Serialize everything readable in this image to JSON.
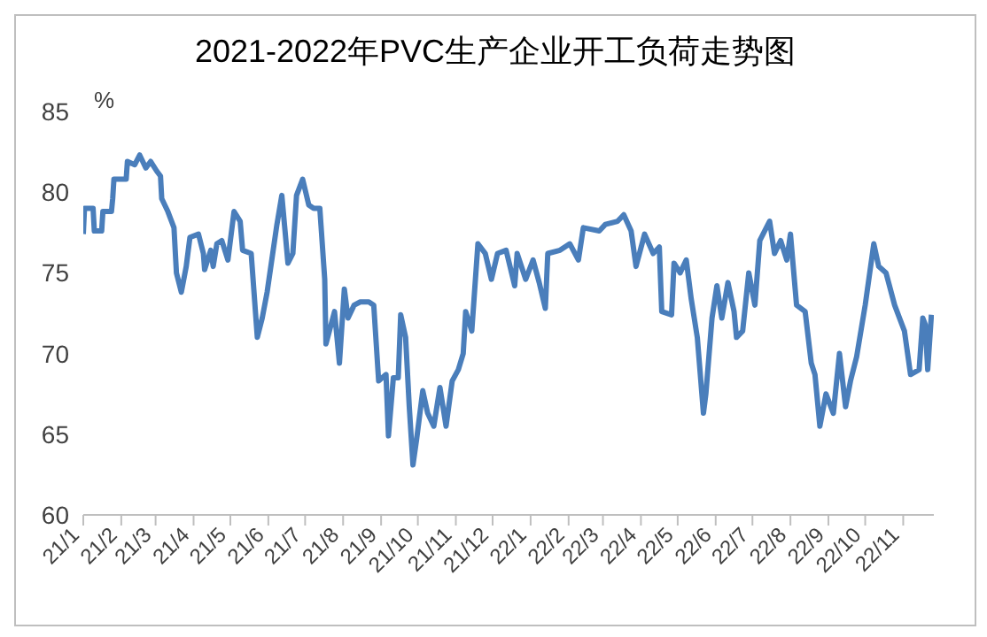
{
  "chart_data": {
    "type": "line",
    "title": "2021-2022年PVC生产企业开工负荷走势图",
    "ylabel": "%",
    "grid": false,
    "legend": false,
    "marker": "none",
    "line_style": "solid",
    "xlim": [
      "2021-01-01",
      "2022-11-26"
    ],
    "ylim": [
      60,
      85
    ],
    "yticks": [
      60,
      65,
      70,
      75,
      80,
      85
    ],
    "xticks": [
      {
        "value": "2021-01-01",
        "label": "21/1"
      },
      {
        "value": "2021-02-01",
        "label": "21/2"
      },
      {
        "value": "2021-03-01",
        "label": "21/3"
      },
      {
        "value": "2021-04-01",
        "label": "21/4"
      },
      {
        "value": "2021-05-01",
        "label": "21/5"
      },
      {
        "value": "2021-06-01",
        "label": "21/6"
      },
      {
        "value": "2021-07-01",
        "label": "21/7"
      },
      {
        "value": "2021-08-01",
        "label": "21/8"
      },
      {
        "value": "2021-09-01",
        "label": "21/9"
      },
      {
        "value": "2021-10-01",
        "label": "21/10"
      },
      {
        "value": "2021-11-01",
        "label": "21/11"
      },
      {
        "value": "2021-12-01",
        "label": "21/12"
      },
      {
        "value": "2022-01-01",
        "label": "22/1"
      },
      {
        "value": "2022-02-01",
        "label": "22/2"
      },
      {
        "value": "2022-03-01",
        "label": "22/3"
      },
      {
        "value": "2022-04-01",
        "label": "22/4"
      },
      {
        "value": "2022-05-01",
        "label": "22/5"
      },
      {
        "value": "2022-06-01",
        "label": "22/6"
      },
      {
        "value": "2022-07-01",
        "label": "22/7"
      },
      {
        "value": "2022-08-01",
        "label": "22/8"
      },
      {
        "value": "2022-09-01",
        "label": "22/9"
      },
      {
        "value": "2022-10-01",
        "label": "22/10"
      },
      {
        "value": "2022-11-01",
        "label": "22/11"
      }
    ],
    "x": [
      "2021-01-01",
      "2021-01-02",
      "2021-01-09",
      "2021-01-10",
      "2021-01-16",
      "2021-01-17",
      "2021-01-24",
      "2021-01-25",
      "2021-01-26",
      "2021-02-05",
      "2021-02-06",
      "2021-02-12",
      "2021-02-16",
      "2021-02-21",
      "2021-02-25",
      "2021-03-02",
      "2021-03-05",
      "2021-03-06",
      "2021-03-11",
      "2021-03-16",
      "2021-03-18",
      "2021-03-22",
      "2021-03-26",
      "2021-03-29",
      "2021-04-05",
      "2021-04-09",
      "2021-04-10",
      "2021-04-15",
      "2021-04-17",
      "2021-04-20",
      "2021-04-24",
      "2021-04-29",
      "2021-05-04",
      "2021-05-09",
      "2021-05-11",
      "2021-05-18",
      "2021-05-23",
      "2021-05-27",
      "2021-05-31",
      "2021-06-08",
      "2021-06-12",
      "2021-06-17",
      "2021-06-21",
      "2021-06-24",
      "2021-06-29",
      "2021-07-04",
      "2021-07-08",
      "2021-07-13",
      "2021-07-17",
      "2021-07-18",
      "2021-07-25",
      "2021-07-29",
      "2021-08-02",
      "2021-08-05",
      "2021-08-10",
      "2021-08-15",
      "2021-08-22",
      "2021-08-26",
      "2021-08-30",
      "2021-09-05",
      "2021-09-07",
      "2021-09-11",
      "2021-09-15",
      "2021-09-17",
      "2021-09-21",
      "2021-09-24",
      "2021-09-27",
      "2021-09-30",
      "2021-10-05",
      "2021-10-09",
      "2021-10-14",
      "2021-10-19",
      "2021-10-24",
      "2021-10-29",
      "2021-11-03",
      "2021-11-07",
      "2021-11-09",
      "2021-11-14",
      "2021-11-19",
      "2021-11-25",
      "2021-11-30",
      "2021-12-05",
      "2021-12-12",
      "2021-12-19",
      "2021-12-21",
      "2021-12-28",
      "2022-01-03",
      "2022-01-08",
      "2022-01-13",
      "2022-01-15",
      "2022-01-25",
      "2022-02-02",
      "2022-02-09",
      "2022-02-13",
      "2022-02-26",
      "2022-03-03",
      "2022-03-13",
      "2022-03-18",
      "2022-03-24",
      "2022-03-28",
      "2022-04-04",
      "2022-04-11",
      "2022-04-16",
      "2022-04-18",
      "2022-04-26",
      "2022-04-28",
      "2022-05-03",
      "2022-05-08",
      "2022-05-12",
      "2022-05-17",
      "2022-05-22",
      "2022-05-24",
      "2022-05-29",
      "2022-06-02",
      "2022-06-06",
      "2022-06-11",
      "2022-06-16",
      "2022-06-18",
      "2022-06-23",
      "2022-06-28",
      "2022-07-03",
      "2022-07-07",
      "2022-07-15",
      "2022-07-19",
      "2022-07-24",
      "2022-07-29",
      "2022-08-01",
      "2022-08-06",
      "2022-08-13",
      "2022-08-18",
      "2022-08-21",
      "2022-08-25",
      "2022-08-30",
      "2022-09-05",
      "2022-09-10",
      "2022-09-15",
      "2022-09-19",
      "2022-09-24",
      "2022-10-01",
      "2022-10-08",
      "2022-10-12",
      "2022-10-18",
      "2022-10-25",
      "2022-11-02",
      "2022-11-07",
      "2022-11-14",
      "2022-11-17",
      "2022-11-19",
      "2022-11-21",
      "2022-11-24"
    ],
    "series": [
      {
        "color": "#4a7ebb",
        "values": [
          77.4,
          79,
          79,
          77.6,
          77.6,
          78.8,
          78.8,
          79.6,
          80.8,
          80.8,
          81.9,
          81.7,
          82.3,
          81.5,
          81.9,
          81.3,
          81,
          79.6,
          78.8,
          77.8,
          75,
          73.8,
          75.4,
          77.2,
          77.4,
          76.2,
          75.2,
          76.4,
          75.4,
          76.8,
          77,
          75.8,
          78.8,
          78.2,
          76.4,
          76.2,
          71,
          72.2,
          73.8,
          78,
          79.8,
          75.6,
          76.2,
          79.8,
          80.8,
          79.2,
          79,
          79,
          74.6,
          70.6,
          72.6,
          69.4,
          74,
          72.2,
          73,
          73.2,
          73.2,
          73,
          68.3,
          68.7,
          64.9,
          68.5,
          68.5,
          72.4,
          71,
          66.7,
          63.1,
          64.7,
          67.7,
          66.3,
          65.5,
          67.9,
          65.5,
          68.3,
          69,
          70,
          72.6,
          71.4,
          76.8,
          76.2,
          74.6,
          76.2,
          76.4,
          74.2,
          76.2,
          74.6,
          75.8,
          74.4,
          72.8,
          76.2,
          76.4,
          76.8,
          75.8,
          77.8,
          77.6,
          78,
          78.2,
          78.6,
          77.6,
          75.4,
          77.4,
          76.2,
          76.6,
          72.6,
          72.4,
          75.6,
          75,
          75.8,
          73.4,
          71,
          66.3,
          67.5,
          72.2,
          74.2,
          72.2,
          74.4,
          72.6,
          71,
          71.4,
          75,
          73,
          77,
          78.2,
          76.2,
          77,
          75.8,
          77.4,
          73,
          72.6,
          69.4,
          68.7,
          65.5,
          67.5,
          66.3,
          70,
          66.7,
          68.3,
          69.8,
          73,
          76.8,
          75.4,
          75,
          73,
          71.4,
          68.7,
          69,
          72.2,
          71.8,
          69,
          72.4
        ]
      }
    ]
  }
}
